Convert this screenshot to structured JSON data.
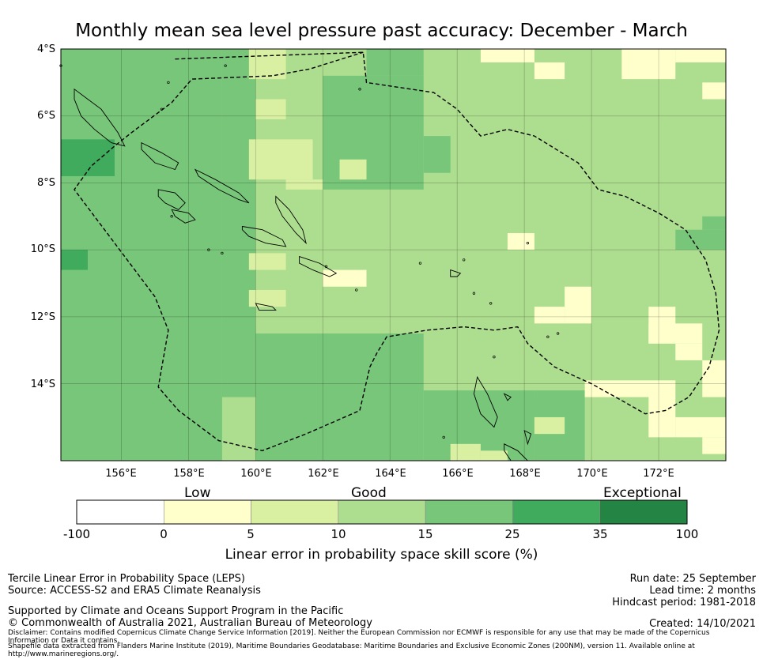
{
  "title": "Monthly mean sea level pressure past accuracy: December - March",
  "map": {
    "lat_labels": [
      "4°S",
      "6°S",
      "8°S",
      "10°S",
      "12°S",
      "14°S"
    ],
    "lon_labels": [
      "156°E",
      "158°E",
      "160°E",
      "162°E",
      "164°E",
      "166°E",
      "168°E",
      "170°E",
      "172°E"
    ],
    "lon_range": [
      154.2,
      174.0
    ],
    "lat_range": [
      -4.0,
      -16.3
    ],
    "grid_step": 0.8333,
    "default_class": 3,
    "patches": [
      [
        154.2,
        159.0,
        -4.0,
        -16.3,
        4
      ],
      [
        159.0,
        160.0,
        -4.0,
        -14.4,
        4
      ],
      [
        160.0,
        163.3,
        -4.0,
        -12.3,
        3
      ],
      [
        163.3,
        165.0,
        -4.0,
        -4.8,
        4
      ],
      [
        162.0,
        165.0,
        -4.8,
        -8.2,
        4
      ],
      [
        165.0,
        165.8,
        -6.6,
        -7.7,
        4
      ],
      [
        162.0,
        165.0,
        -8.2,
        -12.5,
        3
      ],
      [
        165.0,
        169.8,
        -12.3,
        -16.3,
        3
      ],
      [
        160.0,
        165.0,
        -12.5,
        -16.3,
        4
      ],
      [
        165.0,
        168.3,
        -14.2,
        -16.3,
        4
      ],
      [
        168.3,
        169.8,
        -14.2,
        -16.3,
        4
      ],
      [
        154.2,
        155.8,
        -6.7,
        -7.8,
        5
      ],
      [
        154.2,
        155.0,
        -10.0,
        -10.6,
        5
      ],
      [
        159.8,
        160.9,
        -4.0,
        -4.9,
        2
      ],
      [
        160.0,
        160.9,
        -5.5,
        -6.1,
        2
      ],
      [
        159.8,
        161.7,
        -6.7,
        -7.9,
        2
      ],
      [
        162.5,
        163.3,
        -7.3,
        -7.9,
        2
      ],
      [
        159.8,
        160.9,
        -10.1,
        -10.6,
        2
      ],
      [
        159.8,
        160.9,
        -11.2,
        -11.7,
        2
      ],
      [
        162.0,
        163.3,
        -10.6,
        -11.1,
        1
      ],
      [
        160.9,
        162.0,
        -7.9,
        -8.2,
        2
      ],
      [
        167.5,
        168.3,
        -9.5,
        -10.0,
        1
      ],
      [
        166.7,
        168.3,
        -4.0,
        -4.4,
        1
      ],
      [
        168.3,
        169.2,
        -4.4,
        -4.9,
        1
      ],
      [
        169.8,
        170.9,
        -4.4,
        -4.9,
        3
      ],
      [
        170.9,
        172.5,
        -4.0,
        -4.9,
        1
      ],
      [
        172.5,
        174.0,
        -4.0,
        -4.4,
        1
      ],
      [
        173.3,
        174.0,
        -5.0,
        -5.5,
        1
      ],
      [
        172.5,
        174.0,
        -9.4,
        -10.0,
        4
      ],
      [
        173.3,
        174.0,
        -9.0,
        -9.4,
        4
      ],
      [
        169.2,
        170.0,
        -11.1,
        -12.2,
        1
      ],
      [
        168.3,
        169.2,
        -11.7,
        -12.2,
        1
      ],
      [
        171.7,
        172.5,
        -11.7,
        -12.8,
        1
      ],
      [
        171.7,
        173.3,
        -12.2,
        -12.8,
        1
      ],
      [
        172.5,
        173.3,
        -12.8,
        -13.3,
        1
      ],
      [
        173.3,
        174.0,
        -13.3,
        -14.4,
        1
      ],
      [
        169.8,
        172.5,
        -13.9,
        -14.4,
        1
      ],
      [
        171.7,
        172.5,
        -14.4,
        -15.6,
        1
      ],
      [
        172.5,
        174.0,
        -15.0,
        -15.6,
        1
      ],
      [
        173.3,
        174.0,
        -15.6,
        -16.1,
        1
      ],
      [
        166.7,
        167.5,
        -16.0,
        -16.3,
        2
      ],
      [
        168.3,
        169.2,
        -15.0,
        -15.5,
        2
      ],
      [
        165.8,
        166.7,
        -15.8,
        -16.3,
        2
      ],
      [
        167.5,
        168.3,
        -14.4,
        -15.0,
        4
      ]
    ],
    "boundary": [
      [
        157.6,
        -4.3
      ],
      [
        163.2,
        -4.1
      ],
      [
        163.3,
        -5.0
      ],
      [
        165.3,
        -5.3
      ],
      [
        166.0,
        -5.8
      ],
      [
        166.7,
        -6.6
      ],
      [
        167.5,
        -6.4
      ],
      [
        168.3,
        -6.6
      ],
      [
        169.6,
        -7.4
      ],
      [
        170.2,
        -8.2
      ],
      [
        171.0,
        -8.4
      ],
      [
        172.0,
        -8.9
      ],
      [
        172.8,
        -9.4
      ],
      [
        173.4,
        -10.3
      ],
      [
        173.7,
        -11.3
      ],
      [
        173.8,
        -12.4
      ],
      [
        173.5,
        -13.5
      ],
      [
        172.9,
        -14.4
      ],
      [
        172.2,
        -14.8
      ],
      [
        171.6,
        -14.9
      ],
      [
        170.9,
        -14.5
      ],
      [
        170.0,
        -14.0
      ],
      [
        168.9,
        -13.5
      ],
      [
        168.1,
        -12.8
      ],
      [
        167.8,
        -12.3
      ],
      [
        167.1,
        -12.4
      ],
      [
        166.2,
        -12.3
      ],
      [
        165.1,
        -12.4
      ],
      [
        163.9,
        -12.6
      ],
      [
        163.6,
        -13.1
      ],
      [
        163.4,
        -13.5
      ],
      [
        163.1,
        -14.8
      ],
      [
        161.5,
        -15.5
      ],
      [
        160.2,
        -16.0
      ],
      [
        158.9,
        -15.7
      ],
      [
        157.7,
        -14.8
      ],
      [
        157.1,
        -14.1
      ],
      [
        157.4,
        -12.4
      ],
      [
        157.0,
        -11.4
      ],
      [
        155.8,
        -9.8
      ],
      [
        154.6,
        -8.2
      ],
      [
        155.1,
        -7.5
      ],
      [
        155.8,
        -6.9
      ],
      [
        156.3,
        -6.5
      ],
      [
        157.5,
        -5.6
      ],
      [
        158.1,
        -4.9
      ],
      [
        160.5,
        -4.8
      ],
      [
        161.6,
        -4.6
      ],
      [
        163.2,
        -4.1
      ]
    ],
    "islands": [
      [
        [
          154.6,
          -5.2
        ],
        [
          155.0,
          -5.5
        ],
        [
          155.4,
          -5.8
        ],
        [
          155.9,
          -6.5
        ],
        [
          156.1,
          -6.9
        ],
        [
          155.7,
          -6.8
        ],
        [
          155.2,
          -6.4
        ],
        [
          154.8,
          -6.0
        ],
        [
          154.6,
          -5.5
        ],
        [
          154.6,
          -5.2
        ]
      ],
      [
        [
          156.6,
          -6.8
        ],
        [
          157.2,
          -7.1
        ],
        [
          157.7,
          -7.4
        ],
        [
          157.6,
          -7.6
        ],
        [
          157.0,
          -7.4
        ],
        [
          156.6,
          -7.0
        ],
        [
          156.6,
          -6.8
        ]
      ],
      [
        [
          158.2,
          -7.6
        ],
        [
          158.8,
          -7.9
        ],
        [
          159.5,
          -8.3
        ],
        [
          159.8,
          -8.6
        ],
        [
          159.5,
          -8.5
        ],
        [
          158.9,
          -8.2
        ],
        [
          158.3,
          -7.8
        ],
        [
          158.2,
          -7.6
        ]
      ],
      [
        [
          157.1,
          -8.2
        ],
        [
          157.6,
          -8.3
        ],
        [
          157.9,
          -8.6
        ],
        [
          157.7,
          -8.8
        ],
        [
          157.3,
          -8.6
        ],
        [
          157.1,
          -8.4
        ],
        [
          157.1,
          -8.2
        ]
      ],
      [
        [
          157.5,
          -8.8
        ],
        [
          158.0,
          -8.9
        ],
        [
          158.2,
          -9.1
        ],
        [
          157.9,
          -9.2
        ],
        [
          157.6,
          -9.0
        ],
        [
          157.5,
          -8.8
        ]
      ],
      [
        [
          160.6,
          -8.4
        ],
        [
          161.0,
          -8.8
        ],
        [
          161.4,
          -9.4
        ],
        [
          161.5,
          -9.8
        ],
        [
          161.2,
          -9.5
        ],
        [
          160.8,
          -9.0
        ],
        [
          160.6,
          -8.6
        ],
        [
          160.6,
          -8.4
        ]
      ],
      [
        [
          159.6,
          -9.3
        ],
        [
          160.2,
          -9.4
        ],
        [
          160.8,
          -9.7
        ],
        [
          160.9,
          -9.9
        ],
        [
          160.3,
          -9.8
        ],
        [
          159.8,
          -9.6
        ],
        [
          159.6,
          -9.4
        ],
        [
          159.6,
          -9.3
        ]
      ],
      [
        [
          161.3,
          -10.2
        ],
        [
          161.9,
          -10.4
        ],
        [
          162.4,
          -10.7
        ],
        [
          162.2,
          -10.8
        ],
        [
          161.7,
          -10.6
        ],
        [
          161.3,
          -10.4
        ],
        [
          161.3,
          -10.2
        ]
      ],
      [
        [
          160.0,
          -11.6
        ],
        [
          160.5,
          -11.7
        ],
        [
          160.6,
          -11.8
        ],
        [
          160.1,
          -11.8
        ],
        [
          160.0,
          -11.6
        ]
      ],
      [
        [
          166.6,
          -13.8
        ],
        [
          166.9,
          -14.3
        ],
        [
          167.2,
          -15.0
        ],
        [
          167.1,
          -15.3
        ],
        [
          166.7,
          -14.9
        ],
        [
          166.5,
          -14.3
        ],
        [
          166.6,
          -13.8
        ]
      ],
      [
        [
          167.4,
          -15.8
        ],
        [
          167.8,
          -16.0
        ],
        [
          168.1,
          -16.3
        ],
        [
          167.6,
          -16.3
        ],
        [
          167.4,
          -16.0
        ],
        [
          167.4,
          -15.8
        ]
      ],
      [
        [
          165.8,
          -10.6
        ],
        [
          166.1,
          -10.7
        ],
        [
          166.0,
          -10.8
        ],
        [
          165.8,
          -10.8
        ],
        [
          165.8,
          -10.6
        ]
      ],
      [
        [
          167.4,
          -14.3
        ],
        [
          167.6,
          -14.4
        ],
        [
          167.5,
          -14.5
        ],
        [
          167.4,
          -14.3
        ]
      ],
      [
        [
          168.0,
          -15.4
        ],
        [
          168.2,
          -15.5
        ],
        [
          168.1,
          -15.8
        ],
        [
          168.0,
          -15.4
        ]
      ]
    ],
    "dots": [
      [
        154.2,
        -4.5
      ],
      [
        159.1,
        -4.5
      ],
      [
        163.1,
        -5.2
      ],
      [
        157.2,
        -5.8
      ],
      [
        157.4,
        -5.0
      ],
      [
        166.2,
        -10.3
      ],
      [
        164.9,
        -10.4
      ],
      [
        166.5,
        -11.3
      ],
      [
        167.0,
        -11.6
      ],
      [
        168.1,
        -9.8
      ],
      [
        169.0,
        -12.5
      ],
      [
        167.1,
        -13.2
      ],
      [
        168.7,
        -12.6
      ],
      [
        165.6,
        -15.6
      ],
      [
        158.6,
        -10.0
      ],
      [
        162.1,
        -10.5
      ],
      [
        163.0,
        -11.2
      ],
      [
        157.5,
        -9.0
      ],
      [
        159.0,
        -10.1
      ]
    ]
  },
  "colorbar": {
    "categories": [
      "Low",
      "Good",
      "Exceptional"
    ],
    "ticks": [
      "-100",
      "0",
      "5",
      "10",
      "15",
      "25",
      "35",
      "100"
    ],
    "colors": [
      "#ffffff",
      "#ffffcc",
      "#d9f0a3",
      "#addd8e",
      "#78c679",
      "#41ab5d",
      "#238443"
    ],
    "title": "Linear error in probability space skill score (%)"
  },
  "footer": {
    "line1": "Tercile Linear Error in Probability Space (LEPS)",
    "line2": "Source: ACCESS-S2 and ERA5 Climate Reanalysis",
    "support": "Supported by Climate and Oceans Support Program in the Pacific",
    "copyright": "© Commonwealth of Australia 2021, Australian Bureau of Meteorology",
    "disclaimer1": "Disclaimer: Contains modified Copernicus Climate Change Service Information [2019]. Neither the European Commission nor ECMWF is responsible for any use that may be made of the Copernicus",
    "disclaimer2": "Information or Data it contains.",
    "shapefile1": "Shapefile data extracted from Flanders Marine Institute (2019), Maritime Boundaries Geodatabase: Maritime Boundaries and Exclusive Economic Zones (200NM), version 11. Available online at",
    "shapefile2": "http://www.marineregions.org/.",
    "run_date": "Run date: 25 September",
    "lead_time": "Lead time: 2 months",
    "hindcast": "Hindcast period: 1981-2018",
    "created": "Created: 14/10/2021"
  }
}
